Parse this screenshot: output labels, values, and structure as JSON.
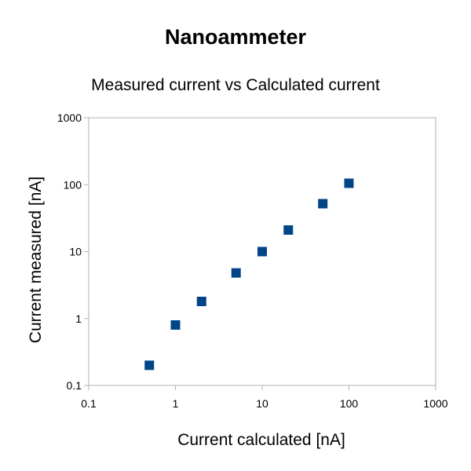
{
  "chart_data": {
    "type": "scatter",
    "title": "Nanoammeter",
    "subtitle": "Measured current vs Calculated current",
    "xlabel": "Current calculated [nA]",
    "ylabel": "Current measured [nA]",
    "x_scale": "log",
    "y_scale": "log",
    "xlim": [
      0.1,
      1000
    ],
    "ylim": [
      0.1,
      1000
    ],
    "x_ticks": [
      "0.1",
      "1",
      "10",
      "100",
      "1000"
    ],
    "y_ticks": [
      "0.1",
      "1",
      "10",
      "100",
      "1000"
    ],
    "grid": false,
    "legend": "none",
    "series": [
      {
        "marker": "square",
        "color": "#004586",
        "x": [
          0.5,
          1,
          2,
          5,
          10,
          20,
          50,
          100
        ],
        "y": [
          0.2,
          0.8,
          1.8,
          4.8,
          10,
          21,
          52,
          105
        ]
      }
    ]
  },
  "colors": {
    "axis": "#b3b3b3",
    "marker": "#004586",
    "text": "#000000"
  }
}
